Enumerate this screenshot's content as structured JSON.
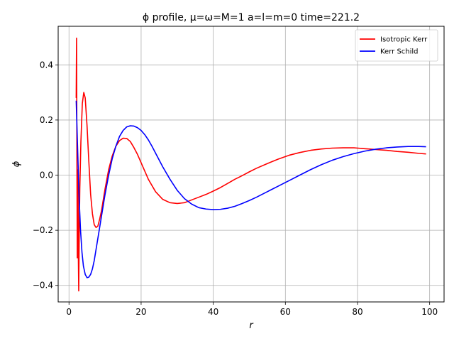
{
  "chart_data": {
    "type": "line",
    "title": "ϕ profile, μ=ω=M=1 a=l=m=0 time=221.2",
    "xlabel": "r",
    "ylabel": "ϕ",
    "xlim": [
      -3,
      104
    ],
    "ylim": [
      -0.46,
      0.54
    ],
    "xticks": [
      0,
      20,
      40,
      60,
      80,
      100
    ],
    "yticks": [
      -0.4,
      -0.2,
      0.0,
      0.2,
      0.4
    ],
    "xtick_labels": [
      "0",
      "20",
      "40",
      "60",
      "80",
      "100"
    ],
    "ytick_labels": [
      "−0.4",
      "−0.2",
      "0.0",
      "0.2",
      "0.4"
    ],
    "grid": true,
    "legend_position": "top-right",
    "series": [
      {
        "name": "Isotropic Kerr",
        "color": "#ff0000",
        "x": [
          2.0,
          2.1,
          2.2,
          2.3,
          2.4,
          2.5,
          2.6,
          2.7,
          2.85,
          3.0,
          3.3,
          3.7,
          4.1,
          4.5,
          5.0,
          5.5,
          6.0,
          6.5,
          7.0,
          7.5,
          8.0,
          8.5,
          9.0,
          9.5,
          10.0,
          11.0,
          12.0,
          13.0,
          14.0,
          15.0,
          16.0,
          17.0,
          18.0,
          19.0,
          20.0,
          21.0,
          22.0,
          24.0,
          26.0,
          28.0,
          30.0,
          32.0,
          34.0,
          36.0,
          38.0,
          40.0,
          42.0,
          44.0,
          46.0,
          48.0,
          50.0,
          52.0,
          55.0,
          58.0,
          61.0,
          64.0,
          67.0,
          70.0,
          73.0,
          76.0,
          79.0,
          82.0,
          85.0,
          88.0,
          91.0,
          94.0,
          97.0,
          99.0
        ],
        "y": [
          0.28,
          0.497,
          0.05,
          -0.3,
          -0.18,
          0.02,
          -0.3,
          -0.42,
          -0.2,
          -0.05,
          0.12,
          0.26,
          0.3,
          0.28,
          0.18,
          0.05,
          -0.07,
          -0.14,
          -0.18,
          -0.19,
          -0.185,
          -0.16,
          -0.13,
          -0.09,
          -0.05,
          0.02,
          0.07,
          0.105,
          0.125,
          0.134,
          0.133,
          0.122,
          0.1,
          0.075,
          0.045,
          0.015,
          -0.015,
          -0.06,
          -0.088,
          -0.1,
          -0.103,
          -0.1,
          -0.09,
          -0.08,
          -0.07,
          -0.058,
          -0.045,
          -0.03,
          -0.015,
          -0.002,
          0.012,
          0.025,
          0.042,
          0.058,
          0.072,
          0.082,
          0.09,
          0.095,
          0.098,
          0.099,
          0.099,
          0.096,
          0.093,
          0.09,
          0.086,
          0.083,
          0.079,
          0.077
        ]
      },
      {
        "name": "Kerr Schild",
        "color": "#0000ff",
        "x": [
          2.0,
          2.2,
          2.5,
          2.8,
          3.2,
          3.6,
          4.0,
          4.5,
          5.0,
          5.5,
          6.0,
          6.5,
          7.0,
          7.5,
          8.0,
          9.0,
          10.0,
          11.0,
          12.0,
          13.0,
          14.0,
          15.0,
          16.0,
          17.0,
          18.0,
          19.0,
          20.0,
          21.0,
          22.0,
          23.0,
          24.0,
          26.0,
          28.0,
          30.0,
          32.0,
          34.0,
          36.0,
          38.0,
          40.0,
          42.0,
          44.0,
          46.0,
          48.0,
          50.0,
          52.0,
          55.0,
          58.0,
          61.0,
          64.0,
          67.0,
          70.0,
          73.0,
          76.0,
          79.0,
          82.0,
          85.0,
          88.0,
          91.0,
          94.0,
          97.0,
          99.0
        ],
        "y": [
          0.27,
          0.18,
          0.05,
          -0.08,
          -0.2,
          -0.28,
          -0.33,
          -0.36,
          -0.372,
          -0.37,
          -0.36,
          -0.34,
          -0.31,
          -0.27,
          -0.23,
          -0.15,
          -0.07,
          0.0,
          0.06,
          0.105,
          0.14,
          0.162,
          0.175,
          0.179,
          0.178,
          0.172,
          0.162,
          0.147,
          0.128,
          0.105,
          0.08,
          0.03,
          -0.015,
          -0.055,
          -0.085,
          -0.105,
          -0.118,
          -0.123,
          -0.125,
          -0.124,
          -0.12,
          -0.113,
          -0.103,
          -0.092,
          -0.08,
          -0.06,
          -0.04,
          -0.02,
          0.0,
          0.02,
          0.038,
          0.054,
          0.067,
          0.078,
          0.087,
          0.094,
          0.099,
          0.102,
          0.104,
          0.104,
          0.103
        ]
      }
    ]
  }
}
